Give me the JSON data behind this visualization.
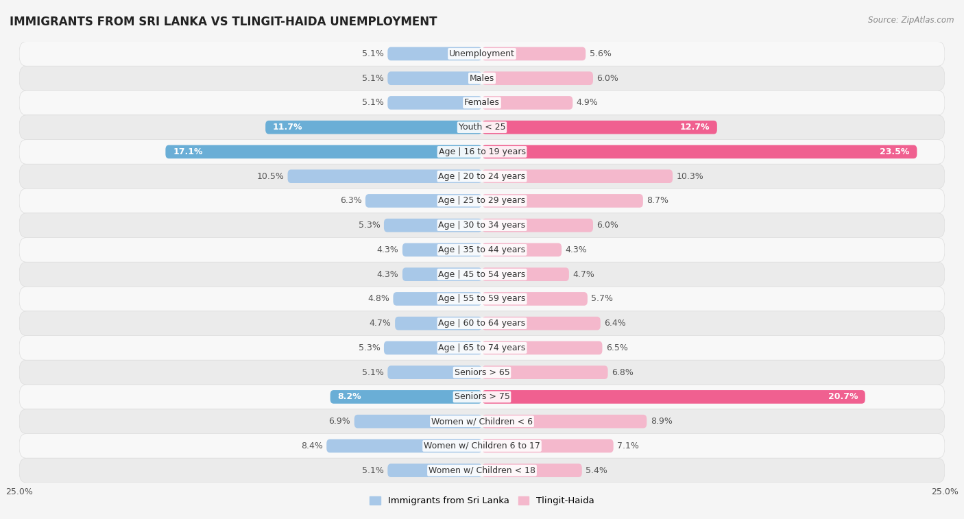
{
  "title": "IMMIGRANTS FROM SRI LANKA VS TLINGIT-HAIDA UNEMPLOYMENT",
  "source": "Source: ZipAtlas.com",
  "categories": [
    "Unemployment",
    "Males",
    "Females",
    "Youth < 25",
    "Age | 16 to 19 years",
    "Age | 20 to 24 years",
    "Age | 25 to 29 years",
    "Age | 30 to 34 years",
    "Age | 35 to 44 years",
    "Age | 45 to 54 years",
    "Age | 55 to 59 years",
    "Age | 60 to 64 years",
    "Age | 65 to 74 years",
    "Seniors > 65",
    "Seniors > 75",
    "Women w/ Children < 6",
    "Women w/ Children 6 to 17",
    "Women w/ Children < 18"
  ],
  "sri_lanka_values": [
    5.1,
    5.1,
    5.1,
    11.7,
    17.1,
    10.5,
    6.3,
    5.3,
    4.3,
    4.3,
    4.8,
    4.7,
    5.3,
    5.1,
    8.2,
    6.9,
    8.4,
    5.1
  ],
  "tlingit_haida_values": [
    5.6,
    6.0,
    4.9,
    12.7,
    23.5,
    10.3,
    8.7,
    6.0,
    4.3,
    4.7,
    5.7,
    6.4,
    6.5,
    6.8,
    20.7,
    8.9,
    7.1,
    5.4
  ],
  "sri_lanka_color_normal": "#a8c8e8",
  "tlingit_haida_color_normal": "#f4b8cc",
  "sri_lanka_color_bold": "#6aaed6",
  "tlingit_haida_color_bold": "#f06090",
  "highlight_indices": [
    3,
    4,
    14
  ],
  "bg_white": "#ffffff",
  "bg_gray": "#e8e8e8",
  "row_separator": "#cccccc",
  "xlim": 25.0,
  "legend_label_left": "Immigrants from Sri Lanka",
  "legend_label_right": "Tlingit-Haida",
  "label_fontsize": 9,
  "cat_fontsize": 9,
  "value_fontsize": 9
}
